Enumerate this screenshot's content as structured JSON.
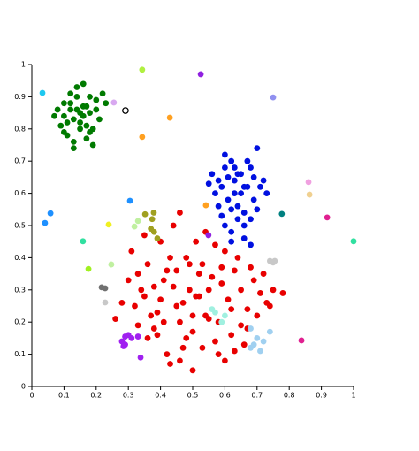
{
  "chart_data": {
    "type": "scatter",
    "xlim": [
      0,
      1
    ],
    "ylim": [
      0,
      1
    ],
    "xticks": [
      0,
      0.1,
      0.2,
      0.3,
      0.4,
      0.5,
      0.6,
      0.7,
      0.8,
      0.9,
      1
    ],
    "yticks": [
      0,
      0.1,
      0.2,
      0.3,
      0.4,
      0.5,
      0.6,
      0.7,
      0.8,
      0.9,
      1
    ],
    "series": [
      {
        "color": "#007a00",
        "x": [
          0.08,
          0.1,
          0.12,
          0.14,
          0.16,
          0.18,
          0.2,
          0.22,
          0.09,
          0.11,
          0.13,
          0.15,
          0.17,
          0.19,
          0.21,
          0.1,
          0.12,
          0.14,
          0.16,
          0.18,
          0.2,
          0.11,
          0.13,
          0.15,
          0.17,
          0.19,
          0.07,
          0.23,
          0.14,
          0.16,
          0.12,
          0.18,
          0.15,
          0.13,
          0.17,
          0.1
        ],
        "values": [
          0.86,
          0.84,
          0.88,
          0.9,
          0.87,
          0.85,
          0.89,
          0.91,
          0.81,
          0.82,
          0.83,
          0.85,
          0.81,
          0.8,
          0.83,
          0.88,
          0.91,
          0.86,
          0.84,
          0.79,
          0.86,
          0.78,
          0.76,
          0.8,
          0.77,
          0.75,
          0.84,
          0.88,
          0.93,
          0.94,
          0.86,
          0.9,
          0.82,
          0.74,
          0.87,
          0.79
        ]
      },
      {
        "color": "#0010e0",
        "x": [
          0.56,
          0.58,
          0.6,
          0.62,
          0.64,
          0.66,
          0.68,
          0.7,
          0.72,
          0.57,
          0.59,
          0.61,
          0.63,
          0.65,
          0.67,
          0.69,
          0.71,
          0.73,
          0.6,
          0.62,
          0.64,
          0.66,
          0.68,
          0.58,
          0.6,
          0.62,
          0.64,
          0.66,
          0.7,
          0.61,
          0.63,
          0.65,
          0.67,
          0.69,
          0.59,
          0.62,
          0.66,
          0.68,
          0.63,
          0.55
        ],
        "values": [
          0.66,
          0.64,
          0.68,
          0.7,
          0.66,
          0.62,
          0.68,
          0.74,
          0.64,
          0.6,
          0.62,
          0.58,
          0.64,
          0.6,
          0.62,
          0.58,
          0.62,
          0.6,
          0.72,
          0.55,
          0.56,
          0.54,
          0.52,
          0.56,
          0.5,
          0.48,
          0.52,
          0.5,
          0.55,
          0.65,
          0.6,
          0.66,
          0.7,
          0.65,
          0.53,
          0.45,
          0.46,
          0.44,
          0.68,
          0.63
        ]
      },
      {
        "color": "#e80000",
        "x": [
          0.31,
          0.33,
          0.35,
          0.37,
          0.39,
          0.41,
          0.43,
          0.45,
          0.47,
          0.49,
          0.51,
          0.53,
          0.55,
          0.57,
          0.59,
          0.61,
          0.63,
          0.65,
          0.67,
          0.69,
          0.71,
          0.73,
          0.75,
          0.3,
          0.32,
          0.34,
          0.36,
          0.38,
          0.4,
          0.42,
          0.44,
          0.46,
          0.48,
          0.5,
          0.52,
          0.54,
          0.56,
          0.58,
          0.6,
          0.62,
          0.64,
          0.66,
          0.68,
          0.7,
          0.72,
          0.26,
          0.28,
          0.35,
          0.4,
          0.45,
          0.5,
          0.55,
          0.6,
          0.65,
          0.46,
          0.48,
          0.52,
          0.43,
          0.38,
          0.57,
          0.62,
          0.53,
          0.44,
          0.41,
          0.47,
          0.59,
          0.67,
          0.51,
          0.36,
          0.74,
          0.78,
          0.33,
          0.39,
          0.49,
          0.58,
          0.63,
          0.46,
          0.54,
          0.42,
          0.5
        ],
        "values": [
          0.42,
          0.35,
          0.28,
          0.22,
          0.16,
          0.33,
          0.4,
          0.25,
          0.12,
          0.3,
          0.45,
          0.38,
          0.21,
          0.14,
          0.32,
          0.27,
          0.36,
          0.19,
          0.24,
          0.33,
          0.29,
          0.26,
          0.3,
          0.33,
          0.25,
          0.3,
          0.38,
          0.18,
          0.45,
          0.1,
          0.5,
          0.2,
          0.4,
          0.05,
          0.28,
          0.48,
          0.34,
          0.1,
          0.42,
          0.16,
          0.4,
          0.13,
          0.37,
          0.22,
          0.35,
          0.21,
          0.26,
          0.47,
          0.27,
          0.36,
          0.22,
          0.3,
          0.08,
          0.3,
          0.54,
          0.15,
          0.35,
          0.07,
          0.31,
          0.44,
          0.24,
          0.12,
          0.31,
          0.2,
          0.26,
          0.37,
          0.18,
          0.28,
          0.15,
          0.25,
          0.29,
          0.19,
          0.23,
          0.38,
          0.2,
          0.11,
          0.08,
          0.22,
          0.36,
          0.17
        ]
      },
      {
        "color": "#1ec8f0",
        "x": [
          0.033
        ],
        "values": [
          0.912
        ]
      },
      {
        "color": "#d8a8f0",
        "x": [
          0.255
        ],
        "values": [
          0.882
        ]
      },
      {
        "color": "#000000",
        "marker": "open",
        "x": [
          0.291
        ],
        "values": [
          0.857
        ]
      },
      {
        "color": "#b0f040",
        "x": [
          0.343
        ],
        "values": [
          0.984
        ]
      },
      {
        "color": "#9020e0",
        "x": [
          0.525,
          0.549
        ],
        "values": [
          0.97,
          0.47
        ]
      },
      {
        "color": "#ffa020",
        "x": [
          0.429,
          0.343,
          0.541
        ],
        "values": [
          0.835,
          0.775,
          0.563
        ]
      },
      {
        "color": "#9090f0",
        "x": [
          0.75
        ],
        "values": [
          0.898
        ]
      },
      {
        "color": "#1e90ff",
        "x": [
          0.305,
          0.058,
          0.041
        ],
        "values": [
          0.577,
          0.538,
          0.508
        ]
      },
      {
        "color": "#30e0a0",
        "x": [
          0.159,
          1.0
        ],
        "values": [
          0.451,
          0.451
        ]
      },
      {
        "color": "#f0f020",
        "x": [
          0.239
        ],
        "values": [
          0.503
        ]
      },
      {
        "color": "#a0f020",
        "x": [
          0.176
        ],
        "values": [
          0.365
        ]
      },
      {
        "color": "#c0f0a0",
        "x": [
          0.247,
          0.319,
          0.33
        ],
        "values": [
          0.379,
          0.497,
          0.514
        ]
      },
      {
        "color": "#a0a020",
        "x": [
          0.352,
          0.379,
          0.374,
          0.38,
          0.39,
          0.37
        ],
        "values": [
          0.535,
          0.54,
          0.52,
          0.48,
          0.46,
          0.49
        ]
      },
      {
        "color": "#008080",
        "x": [
          0.777
        ],
        "values": [
          0.536
        ]
      },
      {
        "color": "#f0a0e0",
        "x": [
          0.86
        ],
        "values": [
          0.635
        ]
      },
      {
        "color": "#f0d090",
        "x": [
          0.863
        ],
        "values": [
          0.596
        ]
      },
      {
        "color": "#e02090",
        "x": [
          0.918,
          0.838
        ],
        "values": [
          0.525,
          0.143
        ]
      },
      {
        "color": "#c8c8c8",
        "x": [
          0.74,
          0.75,
          0.755,
          0.228
        ],
        "values": [
          0.39,
          0.385,
          0.39,
          0.261
        ]
      },
      {
        "color": "#707070",
        "x": [
          0.217,
          0.228
        ],
        "values": [
          0.308,
          0.305
        ]
      },
      {
        "color": "#a020f0",
        "x": [
          0.29,
          0.3,
          0.28,
          0.285,
          0.31,
          0.33,
          0.29,
          0.338
        ],
        "values": [
          0.155,
          0.16,
          0.14,
          0.125,
          0.15,
          0.155,
          0.13,
          0.09
        ]
      },
      {
        "color": "#a0f0e0",
        "x": [
          0.56,
          0.57,
          0.6,
          0.59
        ],
        "values": [
          0.24,
          0.23,
          0.22,
          0.2
        ]
      },
      {
        "color": "#a0d0f0",
        "x": [
          0.68,
          0.7,
          0.72,
          0.71,
          0.68,
          0.74,
          0.69
        ],
        "values": [
          0.18,
          0.15,
          0.14,
          0.11,
          0.12,
          0.17,
          0.13
        ]
      }
    ]
  }
}
